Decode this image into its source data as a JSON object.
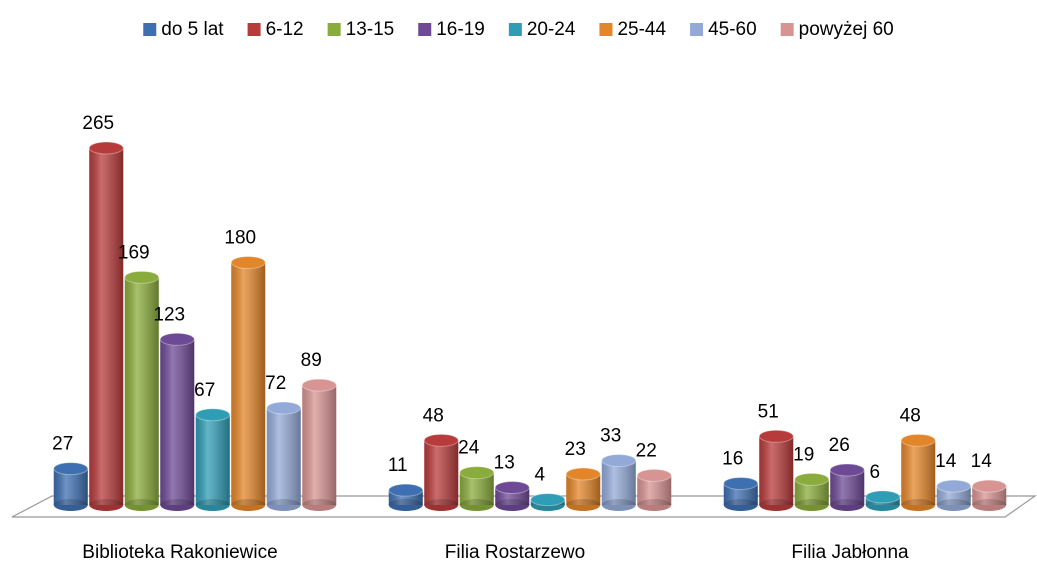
{
  "chart_data": {
    "type": "bar",
    "categories": [
      "Biblioteka Rakoniewice",
      "Filia Rostarzewo",
      "Filia Jabłonna"
    ],
    "series": [
      {
        "name": "do 5 lat",
        "color": "#3e6fb0",
        "values": [
          27,
          11,
          16
        ]
      },
      {
        "name": "6-12",
        "color": "#b83b3b",
        "values": [
          265,
          48,
          51
        ]
      },
      {
        "name": "13-15",
        "color": "#8aac3c",
        "values": [
          169,
          24,
          19
        ]
      },
      {
        "name": "16-19",
        "color": "#6e4a96",
        "values": [
          123,
          13,
          26
        ]
      },
      {
        "name": "20-24",
        "color": "#2f9db5",
        "values": [
          67,
          4,
          6
        ]
      },
      {
        "name": "25-44",
        "color": "#e3862a",
        "values": [
          180,
          23,
          48
        ]
      },
      {
        "name": "45-60",
        "color": "#93aad8",
        "values": [
          72,
          33,
          14
        ]
      },
      {
        "name": "powyżej 60",
        "color": "#d89393",
        "values": [
          89,
          22,
          14
        ]
      }
    ],
    "legend": "top"
  }
}
